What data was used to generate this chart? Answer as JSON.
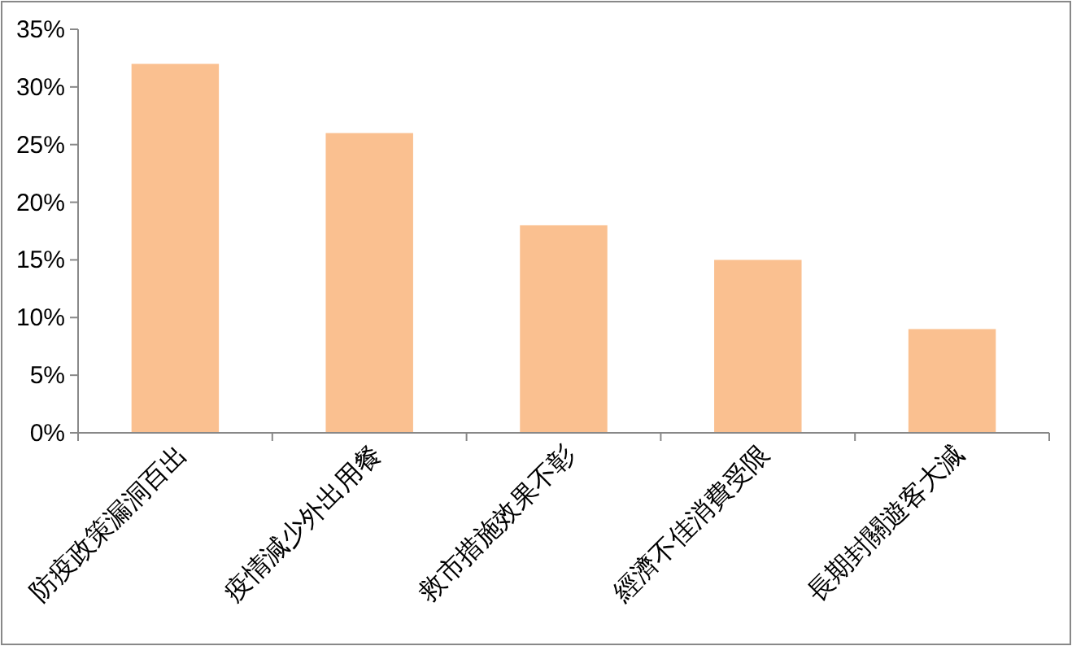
{
  "chart_data": {
    "type": "bar",
    "categories": [
      "防疫政策漏洞百出",
      "疫情減少外出用餐",
      "救市措施效果不彰",
      "經濟不佳消費受限",
      "長期封關遊客大減"
    ],
    "values": [
      32,
      26,
      18,
      15,
      9
    ],
    "color": "#fac090",
    "ylim": [
      0,
      35
    ],
    "yticks": [
      {
        "value": 0,
        "label": "0%"
      },
      {
        "value": 5,
        "label": "5%"
      },
      {
        "value": 10,
        "label": "10%"
      },
      {
        "value": 15,
        "label": "15%"
      },
      {
        "value": 20,
        "label": "20%"
      },
      {
        "value": 25,
        "label": "25%"
      },
      {
        "value": 30,
        "label": "30%"
      },
      {
        "value": 35,
        "label": "35%"
      }
    ],
    "grid": false
  }
}
